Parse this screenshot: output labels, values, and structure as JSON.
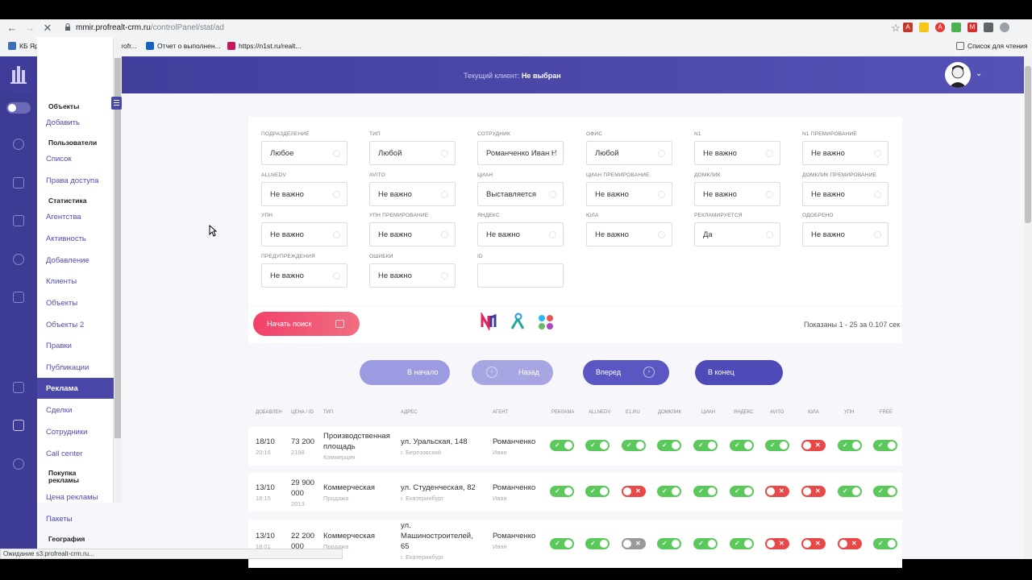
{
  "browser": {
    "url_host": "mmir.profrealt-crm.ru",
    "url_path": "/controlPanel/stat/ad",
    "bookmarks": [
      "КБ Ярмарка",
      "https://export.profr...",
      "Отчет о выполнен...",
      "https://n1st.ru/realt..."
    ],
    "reading_list": "Список для чтения",
    "status": "Ожидание s3.profrealt-crm.ru..."
  },
  "header": {
    "client_label": "Текущий клиент:",
    "client_value": "Не выбран"
  },
  "sidebar": {
    "objects_head": "Объекты",
    "add": "Добавить",
    "users_head": "Пользователи",
    "list": "Список",
    "access": "Права доступа",
    "stats_head": "Статистика",
    "agents": "Агентства",
    "activity": "Активность",
    "adding": "Добавление",
    "clients": "Клиенты",
    "objects": "Объекты",
    "objects2": "Объекты 2",
    "edits": "Правки",
    "publications": "Публикации",
    "ads": "Реклама",
    "deals": "Сделки",
    "staff": "Сотрудники",
    "callcenter": "Call center",
    "buy_ads_head": "Покупка рекламы",
    "ad_price": "Цена рекламы",
    "packages": "Пакеты",
    "geo_head": "География"
  },
  "filters": [
    {
      "label": "Подразделение",
      "value": "Любое"
    },
    {
      "label": "Тип",
      "value": "Любой"
    },
    {
      "label": "Сотрудник",
      "value": "Романченко Иван Н"
    },
    {
      "label": "Офис",
      "value": "Любой"
    },
    {
      "label": "N1",
      "value": "Не важно"
    },
    {
      "label": "N1 премирование",
      "value": "Не важно"
    },
    {
      "label": "Allnedv",
      "value": "Не важно"
    },
    {
      "label": "Avito",
      "value": "Не важно"
    },
    {
      "label": "Циан",
      "value": "Выставляется"
    },
    {
      "label": "Циан премирование",
      "value": "Не важно"
    },
    {
      "label": "Домклик",
      "value": "Не важно"
    },
    {
      "label": "Домклик премирование",
      "value": "Не важно"
    },
    {
      "label": "УПН",
      "value": "Не важно"
    },
    {
      "label": "УПН премирование",
      "value": "Не важно"
    },
    {
      "label": "Яндекс",
      "value": "Не важно"
    },
    {
      "label": "Юла",
      "value": "Не важно"
    },
    {
      "label": "Рекламируется",
      "value": "Да"
    },
    {
      "label": "Одобрено",
      "value": "Не важно"
    },
    {
      "label": "Предупреждения",
      "value": "Не важно"
    },
    {
      "label": "Ошибки",
      "value": "Не важно"
    },
    {
      "label": "ID",
      "value": ""
    }
  ],
  "actions": {
    "search": "Начать поиск",
    "shown": "Показаны 1 - 25 за 0.107 сек"
  },
  "pager": {
    "first": "В начало",
    "prev": "Назад",
    "next": "Вперед",
    "last": "В конец"
  },
  "table": {
    "headers": [
      "Добавлен",
      "Цена / ID",
      "Тип",
      "Адрес",
      "Агент",
      "Реклама",
      "Allnedv",
      "E1.ru",
      "Домклик",
      "Циан",
      "Яндекс",
      "Avito",
      "Юла",
      "УПН",
      "Free"
    ],
    "rows": [
      {
        "date": "18/10",
        "time": "20:16",
        "price": "73 200",
        "id": "2198",
        "type": "Производственная площадь",
        "type_sub": "Коммерция",
        "address": "ул. Уральская, 148",
        "city": "г. Березовский",
        "agent": "Романченко",
        "agent_sub": "Иван",
        "toggles": [
          "on",
          "on",
          "on",
          "on",
          "on",
          "on",
          "on",
          "off",
          "on",
          "on"
        ]
      },
      {
        "date": "13/10",
        "time": "18:15",
        "price": "29 900 000",
        "id": "2013",
        "type": "Коммерческая",
        "type_sub": "Продажа",
        "address": "ул. Студенческая, 82",
        "city": "г. Екатеринбург",
        "agent": "Романченко",
        "agent_sub": "Иван",
        "toggles": [
          "on",
          "on",
          "off",
          "on",
          "on",
          "on",
          "off",
          "off",
          "on",
          "on"
        ]
      },
      {
        "date": "13/10",
        "time": "18:01",
        "price": "22 200 000",
        "id": "",
        "type": "Коммерческая",
        "type_sub": "Продажа",
        "address": "ул. Машиностроителей, 65",
        "city": "г. Екатеринбург",
        "agent": "Романченко",
        "agent_sub": "Иван",
        "toggles": [
          "on",
          "on",
          "gray",
          "on",
          "on",
          "on",
          "off",
          "off",
          "off",
          "on"
        ]
      }
    ]
  },
  "colors": {
    "header": "#3f3c99",
    "accent": "#4a47a8",
    "search": "#f2416a",
    "on": "#5ac85a",
    "off": "#e84848"
  }
}
